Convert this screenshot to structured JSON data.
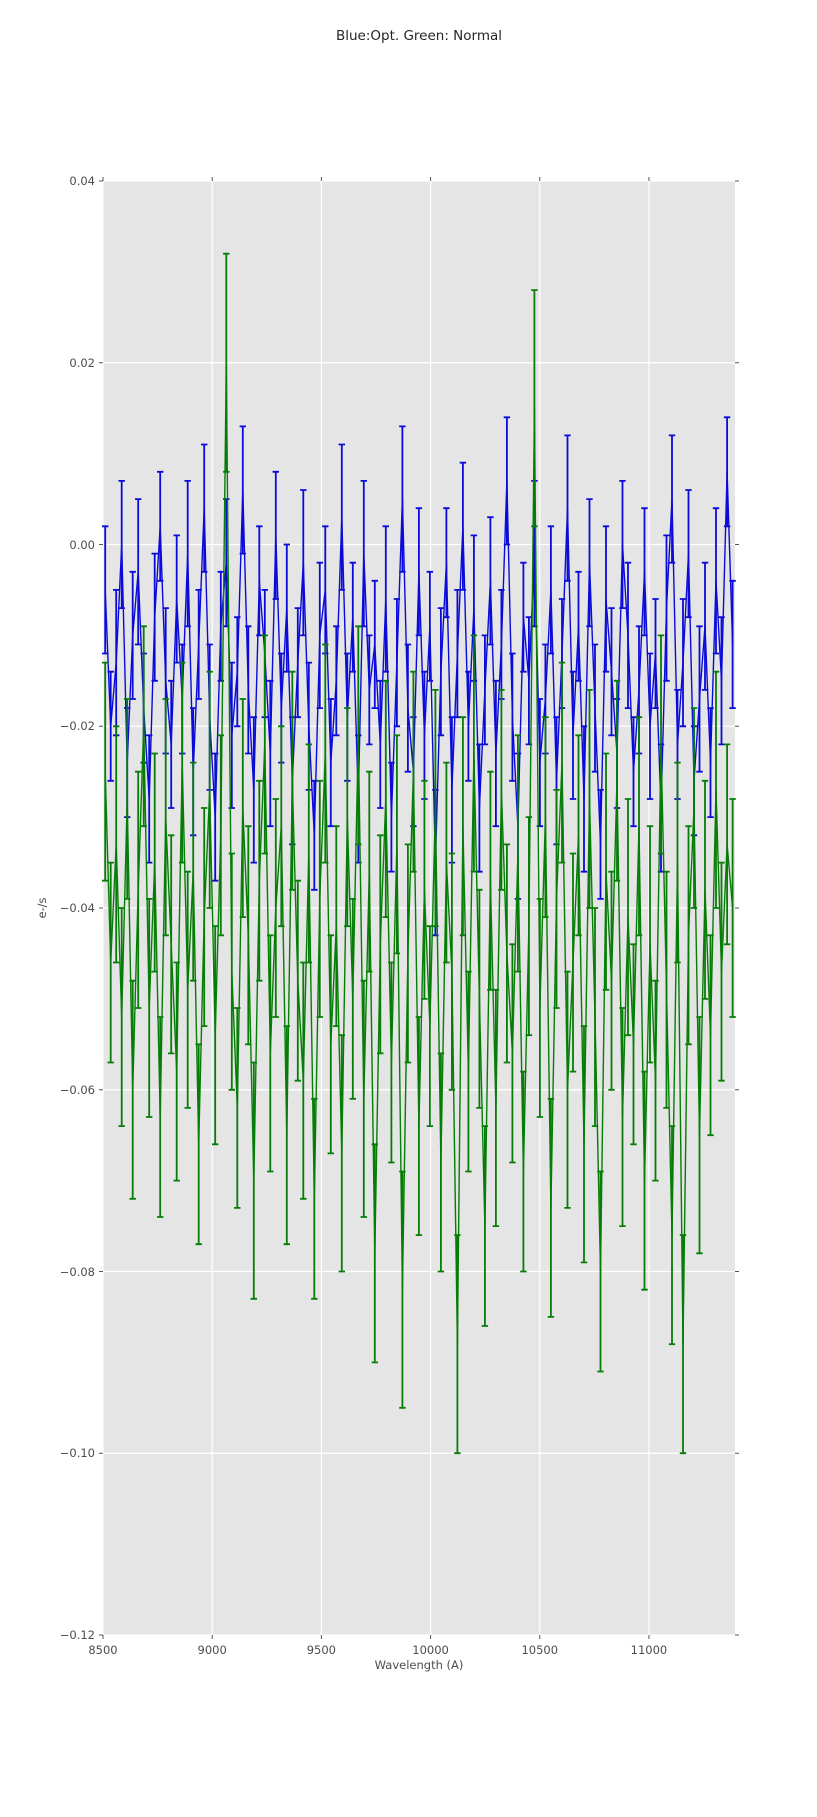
{
  "page": {
    "background": "#ffffff"
  },
  "chart_data": {
    "type": "line",
    "title": "Blue:Opt. Green: Normal",
    "xlabel": "Wavelength (A)",
    "ylabel": "e-/s",
    "xlim": [
      8500,
      11394
    ],
    "ylim": [
      -0.12,
      0.04
    ],
    "xticks": [
      8500,
      9000,
      9500,
      10000,
      10500,
      11000
    ],
    "yticks": [
      0.04,
      0.02,
      0.0,
      -0.02,
      -0.04,
      -0.06,
      -0.08,
      -0.1,
      -0.12
    ],
    "grid": true,
    "legend": "none",
    "plot_background": "#e5e5e5",
    "grid_color": "#ffffff",
    "tick_color": "#555555",
    "text_color": "#4d4d4d",
    "title_color": "#262626",
    "x_start": 8510,
    "x_step": 25.2,
    "n_points": 115,
    "series": [
      {
        "name": "Opt",
        "color": "#0b0bd9",
        "style": "errorbar-line",
        "y": [
          -0.005,
          -0.02,
          -0.013,
          0.0,
          -0.024,
          -0.01,
          -0.003,
          -0.018,
          -0.028,
          -0.008,
          0.002,
          -0.015,
          -0.022,
          -0.006,
          -0.017,
          -0.001,
          -0.025,
          -0.011,
          0.004,
          -0.019,
          -0.03,
          -0.009,
          -0.002,
          -0.021,
          -0.014,
          0.006,
          -0.016,
          -0.027,
          -0.004,
          -0.012,
          -0.023,
          0.001,
          -0.018,
          -0.007,
          -0.026,
          -0.013,
          -0.002,
          -0.02,
          -0.032,
          -0.01,
          -0.005,
          -0.024,
          -0.015,
          0.003,
          -0.019,
          -0.008,
          -0.028,
          -0.001,
          -0.016,
          -0.011,
          -0.022,
          -0.006,
          -0.03,
          -0.013,
          0.005,
          -0.018,
          -0.025,
          -0.003,
          -0.021,
          -0.009,
          -0.035,
          -0.014,
          -0.002,
          -0.027,
          -0.012,
          0.002,
          -0.02,
          -0.007,
          -0.029,
          -0.016,
          -0.004,
          -0.023,
          -0.011,
          0.007,
          -0.019,
          -0.031,
          -0.008,
          -0.015,
          -0.001,
          -0.024,
          -0.017,
          -0.005,
          -0.026,
          -0.012,
          0.004,
          -0.021,
          -0.009,
          -0.028,
          -0.002,
          -0.018,
          -0.033,
          -0.006,
          -0.014,
          -0.023,
          0.0,
          -0.01,
          -0.025,
          -0.016,
          -0.003,
          -0.02,
          -0.012,
          -0.029,
          -0.007,
          0.005,
          -0.022,
          -0.013,
          -0.001,
          -0.026,
          -0.017,
          -0.009,
          -0.024,
          -0.004,
          -0.015,
          0.008,
          -0.011
        ],
        "yerr": [
          0.007,
          0.006,
          0.008,
          0.007,
          0.006,
          0.007,
          0.008,
          0.006,
          0.007,
          0.007,
          0.006,
          0.008,
          0.007,
          0.007,
          0.006,
          0.008,
          0.007,
          0.006,
          0.007,
          0.008,
          0.007,
          0.006,
          0.007,
          0.008,
          0.006,
          0.007,
          0.007,
          0.008,
          0.006,
          0.007,
          0.008,
          0.007,
          0.006,
          0.007,
          0.007,
          0.006,
          0.008,
          0.007,
          0.006,
          0.008,
          0.007,
          0.007,
          0.006,
          0.008,
          0.007,
          0.006,
          0.007,
          0.008,
          0.006,
          0.007,
          0.007,
          0.008,
          0.006,
          0.007,
          0.008,
          0.007,
          0.006,
          0.007,
          0.007,
          0.006,
          0.008,
          0.007,
          0.006,
          0.008,
          0.007,
          0.007,
          0.006,
          0.008,
          0.007,
          0.006,
          0.007,
          0.008,
          0.006,
          0.007,
          0.007,
          0.008,
          0.006,
          0.007,
          0.008,
          0.007,
          0.006,
          0.007,
          0.007,
          0.006,
          0.008,
          0.007,
          0.006,
          0.008,
          0.007,
          0.007,
          0.006,
          0.008,
          0.007,
          0.006,
          0.007,
          0.008,
          0.006,
          0.007,
          0.007,
          0.008,
          0.006,
          0.007,
          0.008,
          0.007,
          0.006,
          0.007,
          0.007,
          0.006,
          0.008,
          0.007,
          0.006,
          0.008,
          0.007,
          0.006,
          0.007
        ]
      },
      {
        "name": "Normal",
        "color": "#067d06",
        "style": "errorbar-line",
        "y": [
          -0.025,
          -0.046,
          -0.033,
          -0.052,
          -0.028,
          -0.06,
          -0.038,
          -0.02,
          -0.051,
          -0.035,
          -0.063,
          -0.03,
          -0.044,
          -0.058,
          -0.024,
          -0.049,
          -0.036,
          -0.066,
          -0.041,
          -0.027,
          -0.054,
          -0.032,
          0.02,
          -0.047,
          -0.062,
          -0.029,
          -0.043,
          -0.07,
          -0.037,
          -0.022,
          -0.056,
          -0.04,
          -0.031,
          -0.065,
          -0.026,
          -0.048,
          -0.059,
          -0.034,
          -0.072,
          -0.039,
          -0.023,
          -0.055,
          -0.042,
          -0.067,
          -0.03,
          -0.05,
          -0.021,
          -0.061,
          -0.036,
          -0.078,
          -0.044,
          -0.028,
          -0.057,
          -0.033,
          -0.082,
          -0.045,
          -0.025,
          -0.064,
          -0.038,
          -0.053,
          -0.029,
          -0.068,
          -0.035,
          -0.047,
          -0.088,
          -0.031,
          -0.058,
          -0.023,
          -0.05,
          -0.075,
          -0.037,
          -0.062,
          -0.027,
          -0.045,
          -0.056,
          -0.034,
          -0.069,
          -0.042,
          0.015,
          -0.051,
          -0.03,
          -0.073,
          -0.039,
          -0.024,
          -0.06,
          -0.046,
          -0.032,
          -0.066,
          -0.028,
          -0.052,
          -0.08,
          -0.036,
          -0.048,
          -0.026,
          -0.063,
          -0.041,
          -0.055,
          -0.031,
          -0.07,
          -0.044,
          -0.059,
          -0.022,
          -0.049,
          -0.076,
          -0.035,
          -0.088,
          -0.043,
          -0.029,
          -0.065,
          -0.038,
          -0.054,
          -0.027,
          -0.047,
          -0.033,
          -0.04
        ],
        "yerr": [
          0.012,
          0.011,
          0.013,
          0.012,
          0.011,
          0.012,
          0.013,
          0.011,
          0.012,
          0.012,
          0.011,
          0.013,
          0.012,
          0.012,
          0.011,
          0.013,
          0.012,
          0.011,
          0.012,
          0.013,
          0.012,
          0.011,
          0.012,
          0.013,
          0.011,
          0.012,
          0.012,
          0.013,
          0.011,
          0.012,
          0.013,
          0.012,
          0.011,
          0.012,
          0.012,
          0.011,
          0.013,
          0.012,
          0.011,
          0.013,
          0.012,
          0.012,
          0.011,
          0.013,
          0.012,
          0.011,
          0.012,
          0.013,
          0.011,
          0.012,
          0.012,
          0.013,
          0.011,
          0.012,
          0.013,
          0.012,
          0.011,
          0.012,
          0.012,
          0.011,
          0.013,
          0.012,
          0.011,
          0.013,
          0.012,
          0.012,
          0.011,
          0.013,
          0.012,
          0.011,
          0.012,
          0.013,
          0.011,
          0.012,
          0.012,
          0.013,
          0.011,
          0.012,
          0.013,
          0.012,
          0.011,
          0.012,
          0.012,
          0.011,
          0.013,
          0.012,
          0.011,
          0.013,
          0.012,
          0.012,
          0.011,
          0.013,
          0.012,
          0.011,
          0.012,
          0.013,
          0.011,
          0.012,
          0.012,
          0.013,
          0.011,
          0.012,
          0.013,
          0.012,
          0.011,
          0.012,
          0.012,
          0.011,
          0.013,
          0.012,
          0.011,
          0.013,
          0.012,
          0.011,
          0.012
        ]
      }
    ]
  }
}
